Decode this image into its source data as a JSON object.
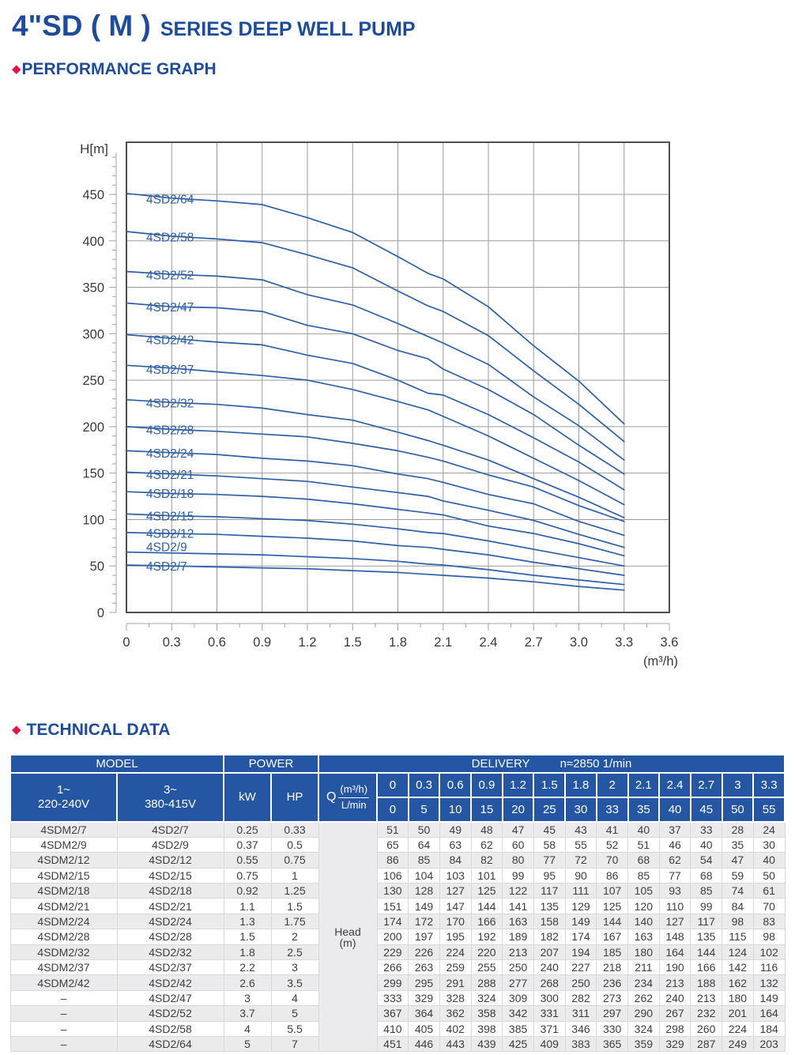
{
  "header": {
    "title": "4\"SD ( M )",
    "subtitle": "SERIES DEEP WELL PUMP",
    "diamond": "◆",
    "performance_heading": "PERFORMANCE GRAPH",
    "technical_heading": "TECHNICAL DATA"
  },
  "colors": {
    "title_blue": "#1d4c9f",
    "diamond_red": "#e7114d",
    "table_header_blue": "#2456a4",
    "curve_blue": "#2d5fa8",
    "grid_gray": "#9b9b9b",
    "plot_border_gray": "#4f4f4f",
    "axis_text_gray": "#3a3a3a"
  },
  "chart_data": {
    "type": "line",
    "title": "",
    "ylabel": "H[m]",
    "xlabel": "",
    "x_unit_label": "(m³/h)",
    "x": [
      0,
      0.3,
      0.6,
      0.9,
      1.2,
      1.5,
      1.8,
      2,
      2.1,
      2.4,
      2.7,
      3,
      3.3
    ],
    "xlim": [
      0,
      3.6
    ],
    "ylim": [
      0,
      500
    ],
    "x_tick_labels": [
      "0",
      "0.3",
      "0.6",
      "0.9",
      "1.2",
      "1.5",
      "1.8",
      "2.1",
      "2.4",
      "2.7",
      "3.0",
      "3.3",
      "3.6"
    ],
    "y_ticks": [
      0,
      50,
      100,
      150,
      200,
      250,
      300,
      350,
      400,
      450
    ],
    "grid": true,
    "legend_position": "inline-labels-on-curves",
    "series": [
      {
        "name": "4SD2/64",
        "values": [
          451,
          446,
          443,
          439,
          425,
          409,
          383,
          365,
          359,
          329,
          287,
          249,
          203
        ]
      },
      {
        "name": "4SD2/58",
        "values": [
          410,
          405,
          402,
          398,
          385,
          371,
          346,
          330,
          324,
          298,
          260,
          224,
          184
        ]
      },
      {
        "name": "4SD2/52",
        "values": [
          367,
          364,
          362,
          358,
          342,
          331,
          311,
          297,
          290,
          267,
          232,
          201,
          164
        ]
      },
      {
        "name": "4SD2/47",
        "values": [
          333,
          329,
          328,
          324,
          309,
          300,
          282,
          273,
          262,
          240,
          213,
          180,
          149
        ]
      },
      {
        "name": "4SD2/42",
        "values": [
          299,
          295,
          291,
          288,
          277,
          268,
          250,
          236,
          234,
          213,
          188,
          162,
          132
        ]
      },
      {
        "name": "4SD2/37",
        "values": [
          266,
          263,
          259,
          255,
          250,
          240,
          227,
          218,
          211,
          190,
          166,
          142,
          116
        ]
      },
      {
        "name": "4SD2/32",
        "values": [
          229,
          226,
          224,
          220,
          213,
          207,
          194,
          185,
          180,
          164,
          144,
          124,
          102
        ]
      },
      {
        "name": "4SD2/28",
        "values": [
          200,
          197,
          195,
          192,
          189,
          182,
          174,
          167,
          163,
          148,
          135,
          115,
          98
        ]
      },
      {
        "name": "4SD2/24",
        "values": [
          174,
          172,
          170,
          166,
          163,
          158,
          149,
          144,
          140,
          127,
          117,
          98,
          83
        ]
      },
      {
        "name": "4SD2/21",
        "values": [
          151,
          149,
          147,
          144,
          141,
          135,
          129,
          125,
          120,
          110,
          99,
          84,
          70
        ]
      },
      {
        "name": "4SD2/18",
        "values": [
          130,
          128,
          127,
          125,
          122,
          117,
          111,
          107,
          105,
          93,
          85,
          74,
          61
        ]
      },
      {
        "name": "4SD2/15",
        "values": [
          106,
          104,
          103,
          101,
          99,
          95,
          90,
          86,
          85,
          77,
          68,
          59,
          50
        ]
      },
      {
        "name": "4SD2/12",
        "values": [
          86,
          85,
          84,
          82,
          80,
          77,
          72,
          70,
          68,
          62,
          54,
          47,
          40
        ]
      },
      {
        "name": "4SD2/9",
        "values": [
          65,
          64,
          63,
          62,
          60,
          58,
          55,
          52,
          51,
          46,
          40,
          35,
          30
        ],
        "label_dy": -3
      },
      {
        "name": "4SD2/7",
        "values": [
          51,
          50,
          49,
          48,
          47,
          45,
          43,
          41,
          40,
          37,
          33,
          28,
          24
        ]
      }
    ]
  },
  "table": {
    "model_header": "MODEL",
    "power_header": "POWER",
    "delivery_header": "DELIVERY",
    "delivery_note": "n≈2850 1/min",
    "col1_header": "1~\n220-240V",
    "col2_header": "3~\n380-415V",
    "kw_header": "kW",
    "hp_header": "HP",
    "q_symbol": "Q",
    "q_top": "(m³/h)",
    "q_bottom": "L/min",
    "q_m3h": [
      "0",
      "0.3",
      "0.6",
      "0.9",
      "1.2",
      "1.5",
      "1.8",
      "2",
      "2.1",
      "2.4",
      "2.7",
      "3",
      "3.3"
    ],
    "q_lmin": [
      "0",
      "5",
      "10",
      "15",
      "20",
      "25",
      "30",
      "33",
      "35",
      "40",
      "45",
      "50",
      "55"
    ],
    "head_cell": "Head\n(m)",
    "rows": [
      {
        "model_1ph": "4SDM2/7",
        "model_3ph": "4SD2/7",
        "kw": "0.25",
        "hp": "0.33",
        "head": [
          "51",
          "50",
          "49",
          "48",
          "47",
          "45",
          "43",
          "41",
          "40",
          "37",
          "33",
          "28",
          "24"
        ]
      },
      {
        "model_1ph": "4SDM2/9",
        "model_3ph": "4SD2/9",
        "kw": "0.37",
        "hp": "0.5",
        "head": [
          "65",
          "64",
          "63",
          "62",
          "60",
          "58",
          "55",
          "52",
          "51",
          "46",
          "40",
          "35",
          "30"
        ]
      },
      {
        "model_1ph": "4SDM2/12",
        "model_3ph": "4SD2/12",
        "kw": "0.55",
        "hp": "0.75",
        "head": [
          "86",
          "85",
          "84",
          "82",
          "80",
          "77",
          "72",
          "70",
          "68",
          "62",
          "54",
          "47",
          "40"
        ]
      },
      {
        "model_1ph": "4SDM2/15",
        "model_3ph": "4SD2/15",
        "kw": "0.75",
        "hp": "1",
        "head": [
          "106",
          "104",
          "103",
          "101",
          "99",
          "95",
          "90",
          "86",
          "85",
          "77",
          "68",
          "59",
          "50"
        ]
      },
      {
        "model_1ph": "4SDM2/18",
        "model_3ph": "4SD2/18",
        "kw": "0.92",
        "hp": "1.25",
        "head": [
          "130",
          "128",
          "127",
          "125",
          "122",
          "117",
          "111",
          "107",
          "105",
          "93",
          "85",
          "74",
          "61"
        ]
      },
      {
        "model_1ph": "4SDM2/21",
        "model_3ph": "4SD2/21",
        "kw": "1.1",
        "hp": "1.5",
        "head": [
          "151",
          "149",
          "147",
          "144",
          "141",
          "135",
          "129",
          "125",
          "120",
          "110",
          "99",
          "84",
          "70"
        ]
      },
      {
        "model_1ph": "4SDM2/24",
        "model_3ph": "4SD2/24",
        "kw": "1.3",
        "hp": "1.75",
        "head": [
          "174",
          "172",
          "170",
          "166",
          "163",
          "158",
          "149",
          "144",
          "140",
          "127",
          "117",
          "98",
          "83"
        ]
      },
      {
        "model_1ph": "4SDM2/28",
        "model_3ph": "4SD2/28",
        "kw": "1.5",
        "hp": "2",
        "head": [
          "200",
          "197",
          "195",
          "192",
          "189",
          "182",
          "174",
          "167",
          "163",
          "148",
          "135",
          "115",
          "98"
        ]
      },
      {
        "model_1ph": "4SDM2/32",
        "model_3ph": "4SD2/32",
        "kw": "1.8",
        "hp": "2.5",
        "head": [
          "229",
          "226",
          "224",
          "220",
          "213",
          "207",
          "194",
          "185",
          "180",
          "164",
          "144",
          "124",
          "102"
        ]
      },
      {
        "model_1ph": "4SDM2/37",
        "model_3ph": "4SD2/37",
        "kw": "2.2",
        "hp": "3",
        "head": [
          "266",
          "263",
          "259",
          "255",
          "250",
          "240",
          "227",
          "218",
          "211",
          "190",
          "166",
          "142",
          "116"
        ]
      },
      {
        "model_1ph": "4SDM2/42",
        "model_3ph": "4SD2/42",
        "kw": "2.6",
        "hp": "3.5",
        "head": [
          "299",
          "295",
          "291",
          "288",
          "277",
          "268",
          "250",
          "236",
          "234",
          "213",
          "188",
          "162",
          "132"
        ]
      },
      {
        "model_1ph": "–",
        "model_3ph": "4SD2/47",
        "kw": "3",
        "hp": "4",
        "head": [
          "333",
          "329",
          "328",
          "324",
          "309",
          "300",
          "282",
          "273",
          "262",
          "240",
          "213",
          "180",
          "149"
        ]
      },
      {
        "model_1ph": "–",
        "model_3ph": "4SD2/52",
        "kw": "3.7",
        "hp": "5",
        "head": [
          "367",
          "364",
          "362",
          "358",
          "342",
          "331",
          "311",
          "297",
          "290",
          "267",
          "232",
          "201",
          "164"
        ]
      },
      {
        "model_1ph": "–",
        "model_3ph": "4SD2/58",
        "kw": "4",
        "hp": "5.5",
        "head": [
          "410",
          "405",
          "402",
          "398",
          "385",
          "371",
          "346",
          "330",
          "324",
          "298",
          "260",
          "224",
          "184"
        ]
      },
      {
        "model_1ph": "–",
        "model_3ph": "4SD2/64",
        "kw": "5",
        "hp": "7",
        "head": [
          "451",
          "446",
          "443",
          "439",
          "425",
          "409",
          "383",
          "365",
          "359",
          "329",
          "287",
          "249",
          "203"
        ]
      }
    ]
  }
}
